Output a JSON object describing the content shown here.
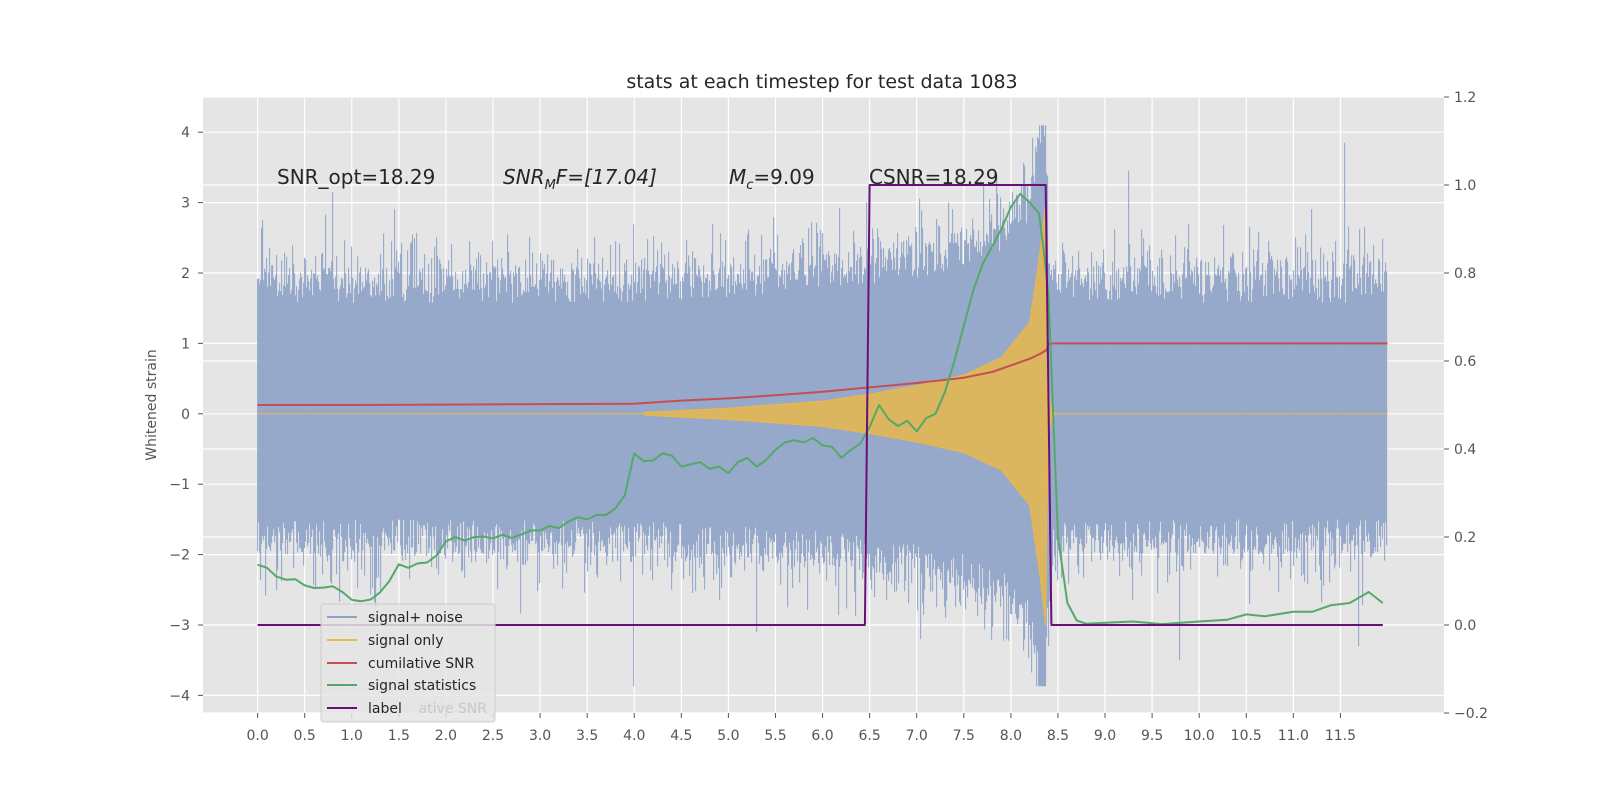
{
  "chart_data": {
    "type": "line",
    "title": "stats at each timestep for test data 1083",
    "ylabel": "Whitened strain",
    "ylabel_right": "",
    "xlim": [
      -0.58,
      12.6
    ],
    "ylim": [
      -4.25,
      4.5
    ],
    "ylim_right": [
      -0.2,
      1.2
    ],
    "x_ticks": [
      "0.0",
      "0.5",
      "1.0",
      "1.5",
      "2.0",
      "2.5",
      "3.0",
      "3.5",
      "4.0",
      "4.5",
      "5.0",
      "5.5",
      "6.0",
      "6.5",
      "7.0",
      "7.5",
      "8.0",
      "8.5",
      "9.0",
      "9.5",
      "10.0",
      "10.5",
      "11.0",
      "11.5"
    ],
    "y_ticks": [
      "4",
      "3",
      "2",
      "1",
      "0",
      "−1",
      "−2",
      "−3",
      "−4"
    ],
    "y_ticks_right": [
      "1.2",
      "1.0",
      "0.8",
      "0.6",
      "0.4",
      "0.2",
      "0.0",
      "−0.2"
    ],
    "grid": true,
    "legend_position": "lower-left",
    "annotations": [
      {
        "id": "snr_opt",
        "text": "SNR_opt=18.29"
      },
      {
        "id": "snr_mf",
        "base": "SNR",
        "sub": "M",
        "suffix": "F=[17.04]"
      },
      {
        "id": "mc",
        "base": "M",
        "sub": "c",
        "suffix": "=9.09"
      },
      {
        "id": "csnr",
        "text": "CSNR=18.29"
      }
    ],
    "series": [
      {
        "name": "signal+ noise",
        "axis": "left",
        "color": "#8ea2c8",
        "envelope": {
          "t_start": 0.0,
          "t_end": 12.0,
          "typical_upper": 2.1,
          "typical_lower": -2.0,
          "max": 4.1,
          "min": -3.87
        },
        "peaks": [
          [
            8.4,
            4.1
          ],
          [
            8.36,
            3.95
          ],
          [
            11.55,
            3.85
          ],
          [
            9.25,
            3.45
          ],
          [
            9.8,
            3.4
          ],
          [
            7.85,
            3.4
          ],
          [
            0.8,
            3.15
          ],
          [
            4.0,
            -3.87
          ],
          [
            9.8,
            -3.5
          ],
          [
            8.4,
            -3.3
          ],
          [
            11.7,
            -3.3
          ],
          [
            5.3,
            -3.1
          ],
          [
            7.05,
            -3.2
          ]
        ]
      },
      {
        "name": "signal only",
        "axis": "left",
        "color": "#e8b84b",
        "chirp": {
          "t_start": 4.1,
          "t_merge": 8.37,
          "t_ringdown_end": 8.5,
          "peak_amplitude": 3.0,
          "amp_at": [
            [
              4.1,
              0.02
            ],
            [
              5.0,
              0.08
            ],
            [
              6.0,
              0.18
            ],
            [
              6.5,
              0.28
            ],
            [
              7.0,
              0.4
            ],
            [
              7.5,
              0.55
            ],
            [
              7.9,
              0.8
            ],
            [
              8.2,
              1.3
            ],
            [
              8.3,
              2.2
            ],
            [
              8.37,
              3.0
            ]
          ]
        }
      },
      {
        "name": "cumilative SNR",
        "axis": "right",
        "color": "#c44e52",
        "x": [
          0.0,
          1.0,
          2.0,
          3.0,
          4.0,
          4.5,
          5.0,
          5.5,
          6.0,
          6.5,
          7.0,
          7.5,
          7.8,
          8.0,
          8.2,
          8.3,
          8.38,
          8.4,
          12.0
        ],
        "values": [
          0.5,
          0.5,
          0.501,
          0.502,
          0.503,
          0.51,
          0.515,
          0.522,
          0.53,
          0.54,
          0.55,
          0.562,
          0.575,
          0.59,
          0.605,
          0.615,
          0.625,
          0.64,
          0.64
        ]
      },
      {
        "name": "signal statistics",
        "axis": "right",
        "color": "#55a868",
        "x": [
          0.0,
          0.1,
          0.2,
          0.3,
          0.4,
          0.5,
          0.6,
          0.7,
          0.8,
          0.9,
          1.0,
          1.1,
          1.2,
          1.3,
          1.4,
          1.5,
          1.6,
          1.7,
          1.8,
          1.9,
          2.0,
          2.1,
          2.2,
          2.3,
          2.4,
          2.5,
          2.6,
          2.7,
          2.8,
          2.9,
          3.0,
          3.1,
          3.2,
          3.3,
          3.4,
          3.5,
          3.6,
          3.7,
          3.8,
          3.9,
          4.0,
          4.1,
          4.2,
          4.3,
          4.4,
          4.5,
          4.6,
          4.7,
          4.8,
          4.9,
          5.0,
          5.1,
          5.2,
          5.3,
          5.4,
          5.5,
          5.6,
          5.7,
          5.8,
          5.9,
          6.0,
          6.1,
          6.2,
          6.3,
          6.4,
          6.5,
          6.6,
          6.7,
          6.8,
          6.9,
          7.0,
          7.1,
          7.2,
          7.3,
          7.4,
          7.5,
          7.6,
          7.7,
          7.8,
          7.9,
          8.0,
          8.1,
          8.2,
          8.3,
          8.35,
          8.4,
          8.5,
          8.6,
          8.7,
          8.8,
          9.0,
          9.3,
          9.6,
          10.0,
          10.3,
          10.5,
          10.7,
          11.0,
          11.2,
          11.4,
          11.6,
          11.8,
          11.95
        ],
        "values": [
          0.137,
          0.13,
          0.11,
          0.103,
          0.104,
          0.09,
          0.084,
          0.085,
          0.088,
          0.075,
          0.057,
          0.054,
          0.058,
          0.074,
          0.1,
          0.138,
          0.13,
          0.14,
          0.142,
          0.158,
          0.19,
          0.2,
          0.192,
          0.2,
          0.201,
          0.197,
          0.205,
          0.198,
          0.206,
          0.215,
          0.215,
          0.225,
          0.22,
          0.235,
          0.245,
          0.24,
          0.25,
          0.25,
          0.265,
          0.295,
          0.39,
          0.372,
          0.374,
          0.39,
          0.385,
          0.36,
          0.365,
          0.37,
          0.355,
          0.36,
          0.345,
          0.37,
          0.38,
          0.36,
          0.375,
          0.398,
          0.415,
          0.42,
          0.415,
          0.425,
          0.408,
          0.405,
          0.38,
          0.398,
          0.412,
          0.45,
          0.5,
          0.468,
          0.452,
          0.464,
          0.44,
          0.47,
          0.48,
          0.53,
          0.6,
          0.68,
          0.76,
          0.82,
          0.86,
          0.9,
          0.95,
          0.98,
          0.96,
          0.935,
          0.85,
          0.75,
          0.2,
          0.05,
          0.01,
          0.003,
          0.005,
          0.008,
          0.002,
          0.008,
          0.012,
          0.024,
          0.02,
          0.03,
          0.03,
          0.045,
          0.05,
          0.075,
          0.05
        ]
      },
      {
        "name": "label",
        "axis": "right",
        "color": "#6a0f7a",
        "x": [
          0.0,
          6.45,
          6.5,
          8.37,
          8.43,
          11.95
        ],
        "values": [
          0.0,
          0.0,
          1.0,
          1.0,
          0.0,
          0.0
        ]
      }
    ],
    "legend": [
      "signal+ noise",
      "signal only",
      "cumilative SNR",
      "signal statistics",
      "label"
    ],
    "legend_hidden_text": "ative SNR"
  },
  "colors": {
    "axes_bg": "#e5e5e5",
    "grid": "#ffffff",
    "tick": "#555555"
  }
}
